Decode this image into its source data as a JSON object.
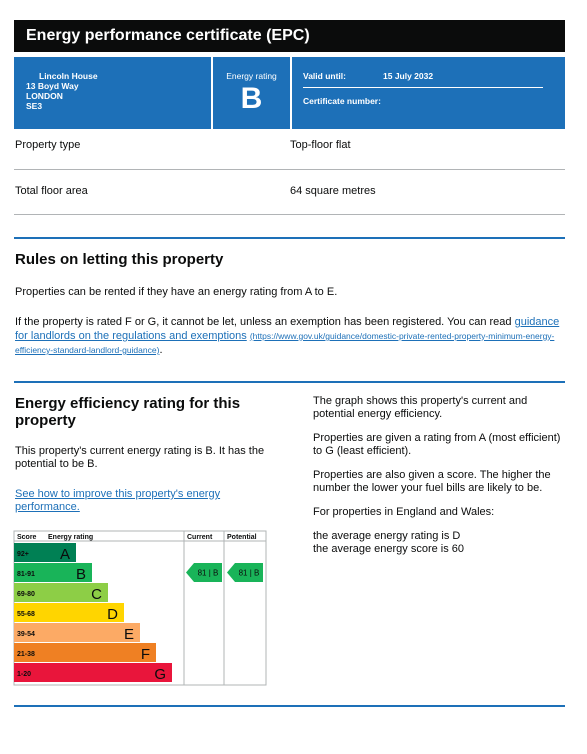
{
  "header": {
    "title": "Energy performance certificate (EPC)"
  },
  "address": [
    "Lincoln House",
    "13 Boyd Way",
    "LONDON",
    "SE3"
  ],
  "rating_box": {
    "label": "Energy rating",
    "rating": "B"
  },
  "validity": {
    "label": "Valid until:",
    "date": "15 July 2032",
    "certificate_label": "Certificate number:"
  },
  "property_table": {
    "rows": [
      [
        "Property type",
        "Top-floor flat"
      ],
      [
        "Total floor area",
        "64 square metres"
      ]
    ]
  },
  "letting": {
    "title": "Rules on letting this property",
    "paragraph": "Properties can be rented if they have an energy rating from A to E.",
    "paragraph2": {
      "text": "If the property is rated F or G, it cannot be let, unless an exemption has been registered. You can read",
      "link_text": "guidance for landlords on the regulations and exemptions",
      "link_url": "(https://www.gov.uk/guidance/domestic-private-rented-property-minimum-energy-efficiency-standard-landlord-guidance)",
      "end": "."
    }
  },
  "efficiency": {
    "title": "Energy efficiency rating for this property",
    "paragraph": "This property's current energy rating is B. It has the potential to be B.",
    "link_text": "See how to improve this property's energy performance.",
    "right_paragraphs": [
      "The graph shows this property's current and potential energy efficiency.",
      "Properties are given a rating from A (most efficient) to G (least efficient).",
      "Properties are also given a score. The higher the number the lower your fuel bills are likely to be.",
      "For properties in England and Wales:"
    ],
    "averages": [
      "the average energy rating is D",
      "the average energy score is 60"
    ]
  },
  "graph": {
    "headers": [
      "Score",
      "Energy rating",
      "Current",
      "Potential"
    ],
    "bands": [
      {
        "score": "92+",
        "letter": "A",
        "color": "#008054"
      },
      {
        "score": "81-91",
        "letter": "B",
        "color": "#19b459"
      },
      {
        "score": "69-80",
        "letter": "C",
        "color": "#8dce46"
      },
      {
        "score": "55-68",
        "letter": "D",
        "color": "#ffd500"
      },
      {
        "score": "39-54",
        "letter": "E",
        "color": "#fcaa65"
      },
      {
        "score": "21-38",
        "letter": "F",
        "color": "#ef8023"
      },
      {
        "score": "1-20",
        "letter": "G",
        "color": "#e9153b"
      }
    ],
    "current": {
      "label": "81 | B",
      "letter": "B"
    },
    "potential": {
      "label": "81 | B",
      "letter": "B"
    }
  }
}
